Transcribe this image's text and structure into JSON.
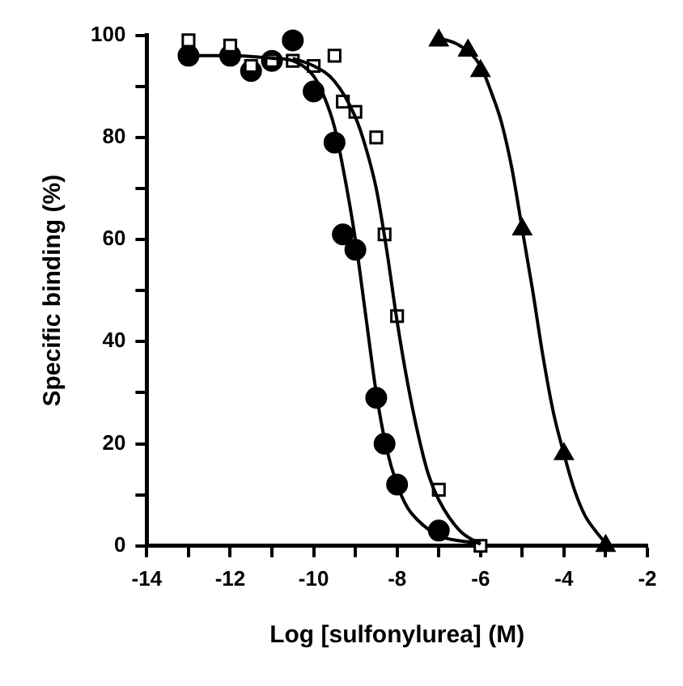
{
  "chart_data": {
    "type": "scatter",
    "xlabel": "Log [sulfonylurea] (M)",
    "ylabel": "Specific binding (%)",
    "xlim": [
      -14,
      -2
    ],
    "xticks": [
      -14,
      {
        "value": -13,
        "label": null
      },
      -12,
      {
        "value": -11,
        "label": null
      },
      -10,
      {
        "value": -9,
        "label": null
      },
      -8,
      {
        "value": -7,
        "label": null
      },
      -6,
      {
        "value": -5,
        "label": null
      },
      -4,
      {
        "value": -3,
        "label": null
      },
      -2
    ],
    "ylim": [
      0,
      100
    ],
    "yticks": [
      0,
      {
        "value": 10,
        "label": null
      },
      20,
      {
        "value": 30,
        "label": null
      },
      40,
      {
        "value": 50,
        "label": null
      },
      60,
      {
        "value": 70,
        "label": null
      },
      80,
      {
        "value": 90,
        "label": null
      },
      100
    ],
    "grid": false,
    "legend": false,
    "series": [
      {
        "type": "scatter",
        "marker": "circle",
        "color": "#000000",
        "x": [
          -13,
          -12,
          -11.5,
          -11,
          -10.5,
          -10,
          -9.5,
          -9.3,
          -9,
          -8.5,
          -8.3,
          -8,
          -7
        ],
        "values": [
          96,
          96,
          93,
          95,
          99,
          89,
          79,
          61,
          58,
          29,
          20,
          12,
          3
        ]
      },
      {
        "type": "scatter",
        "marker": "square",
        "color": "#000000",
        "x": [
          -13,
          -12,
          -11.5,
          -11,
          -10.5,
          -10,
          -9.5,
          -9.3,
          -9,
          -8.5,
          -8.3,
          -8,
          -7,
          -6
        ],
        "values": [
          99,
          98,
          94,
          95,
          95,
          94,
          96,
          87,
          85,
          80,
          61,
          45,
          11,
          0
        ]
      },
      {
        "type": "scatter",
        "marker": "triangle",
        "color": "#000000",
        "x": [
          -7,
          -6.3,
          -6,
          -5,
          -4,
          -3
        ],
        "values": [
          99,
          97,
          93,
          62,
          18,
          0
        ]
      },
      {
        "type": "line",
        "marker": "none",
        "color": "#000000",
        "x": [
          -13,
          -12,
          -11,
          -10.5,
          -10,
          -9.75,
          -9.5,
          -9.25,
          -9,
          -8.75,
          -8.5,
          -8.25,
          -8,
          -7.75,
          -7.5,
          -7,
          -6.5,
          -6
        ],
        "values": [
          96,
          96,
          95.5,
          95,
          92,
          88,
          82,
          72,
          60,
          45,
          30,
          19,
          12,
          7.5,
          5,
          2,
          1,
          0.6
        ]
      },
      {
        "type": "line",
        "marker": "none",
        "color": "#000000",
        "x": [
          -10.5,
          -10,
          -9.5,
          -9,
          -8.75,
          -8.5,
          -8.25,
          -8,
          -7.75,
          -7.5,
          -7.25,
          -7,
          -6.5,
          -6
        ],
        "values": [
          95.5,
          94,
          91,
          84,
          78,
          70,
          58,
          44,
          32,
          22,
          14,
          9,
          3,
          0.3
        ]
      },
      {
        "type": "line",
        "marker": "none",
        "color": "#000000",
        "x": [
          -7,
          -6.5,
          -6,
          -5.75,
          -5.5,
          -5.25,
          -5,
          -4.75,
          -4.5,
          -4.25,
          -4,
          -3.75,
          -3.5,
          -3.25,
          -3
        ],
        "values": [
          99.5,
          98,
          94,
          89,
          83,
          74,
          62,
          50,
          37,
          26,
          18,
          11,
          6,
          3,
          0.5
        ]
      }
    ]
  }
}
